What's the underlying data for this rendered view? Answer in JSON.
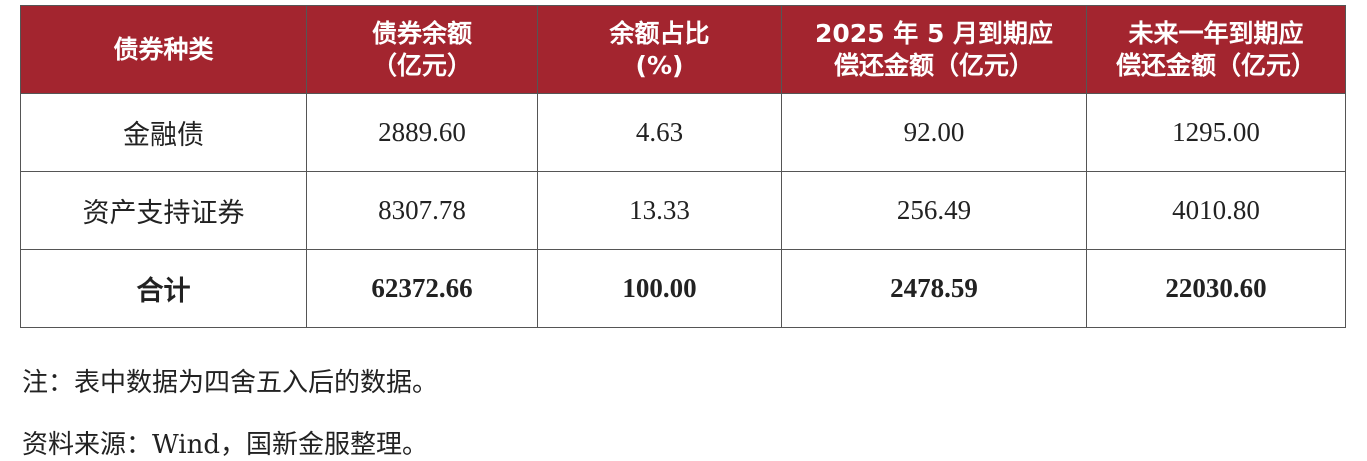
{
  "table": {
    "header": [
      [
        "债券种类"
      ],
      [
        "债券余额",
        "（亿元）"
      ],
      [
        "余额占比",
        "(%)"
      ],
      [
        "2025 年 5 月到期应",
        "偿还金额（亿元）"
      ],
      [
        "未来一年到期应",
        "偿还金额（亿元）"
      ]
    ],
    "rows": [
      [
        "金融债",
        "2889.60",
        "4.63",
        "92.00",
        "1295.00"
      ],
      [
        "资产支持证券",
        "8307.78",
        "13.33",
        "256.49",
        "4010.80"
      ],
      [
        "合计",
        "62372.66",
        "100.00",
        "2478.59",
        "22030.60"
      ]
    ]
  },
  "notes": [
    "注：表中数据为四舍五入后的数据。",
    "资料来源：Wind，国新金服整理。"
  ]
}
